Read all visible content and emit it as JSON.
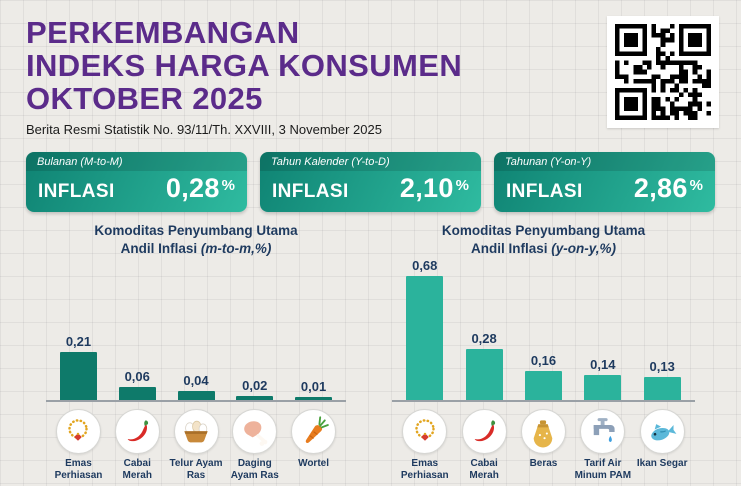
{
  "colors": {
    "purple": "#5b2b8a",
    "navy": "#1e3a5f",
    "teal_start": "#0f8373",
    "teal_end": "#2fbba0"
  },
  "header": {
    "title_lines": [
      "PERKEMBANGAN",
      "INDEKS HARGA KONSUMEN",
      "OKTOBER 2025"
    ],
    "subtitle": "Berita Resmi Statistik No. 93/11/Th. XXVIII, 3 November 2025"
  },
  "stats": [
    {
      "period": "Bulanan (M-to-M)",
      "label": "INFLASI",
      "value": "0,28",
      "percent": "%"
    },
    {
      "period": "Tahun Kalender (Y-to-D)",
      "label": "INFLASI",
      "value": "2,10",
      "percent": "%"
    },
    {
      "period": "Tahunan (Y-on-Y)",
      "label": "INFLASI",
      "value": "2,86",
      "percent": "%"
    }
  ],
  "chart_data": [
    {
      "type": "bar",
      "title": "Komoditas Penyumbang Utama Andil Inflasi (m-to-m,%)",
      "title_line1": "Komoditas Penyumbang Utama",
      "title_line2": "Andil Inflasi",
      "title_line2_italic": "(m-to-m,%)",
      "categories": [
        "Emas Perhiasan",
        "Cabai Merah",
        "Telur Ayam Ras",
        "Daging Ayam Ras",
        "Wortel"
      ],
      "values": [
        0.21,
        0.06,
        0.04,
        0.02,
        0.01
      ],
      "value_labels": [
        "0,21",
        "0,06",
        "0,04",
        "0,02",
        "0,01"
      ],
      "icons": [
        "gold-jewelry-icon",
        "red-chili-icon",
        "eggs-icon",
        "chicken-meat-icon",
        "carrot-icon"
      ],
      "bar_color": "#0e7a6a",
      "legend": "none",
      "grid": "off"
    },
    {
      "type": "bar",
      "title": "Komoditas Penyumbang Utama Andil Inflasi (y-on-y,%)",
      "title_line1": "Komoditas Penyumbang Utama",
      "title_line2": "Andil Inflasi",
      "title_line2_italic": "(y-on-y,%)",
      "categories": [
        "Emas Perhiasan",
        "Cabai Merah",
        "Beras",
        "Tarif Air Minum PAM",
        "Ikan Segar"
      ],
      "values": [
        0.68,
        0.28,
        0.16,
        0.14,
        0.13
      ],
      "value_labels": [
        "0,68",
        "0,28",
        "0,16",
        "0,14",
        "0,13"
      ],
      "icons": [
        "gold-jewelry-icon",
        "red-chili-icon",
        "rice-icon",
        "water-tap-icon",
        "fish-icon"
      ],
      "bar_color": "#2bb39c",
      "legend": "none",
      "grid": "off"
    }
  ]
}
